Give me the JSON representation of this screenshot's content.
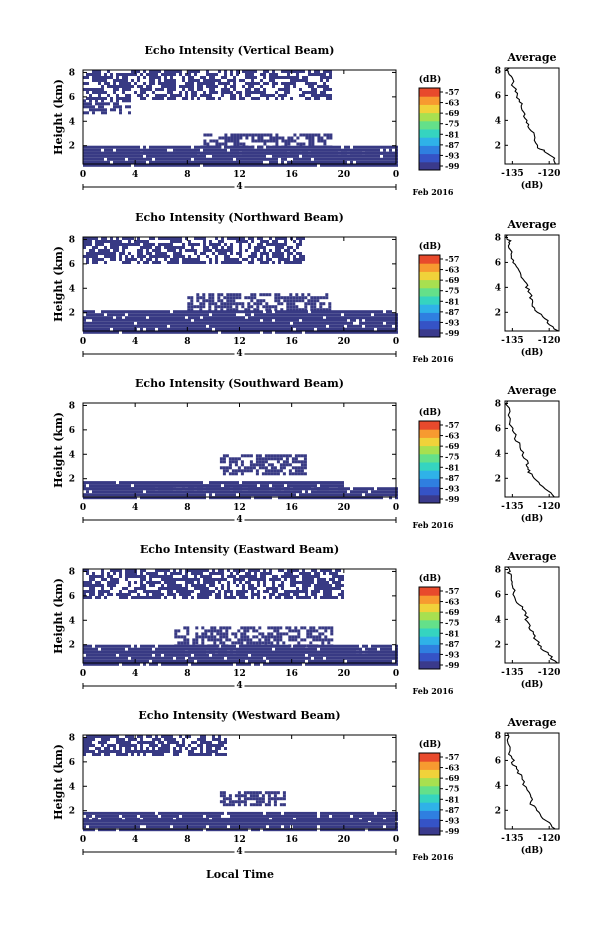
{
  "figure": {
    "xlabel": "Local Time",
    "date_label": "Feb 2016",
    "ylabel": "Height (km)",
    "colorbar_unit": "(dB)",
    "avg_title": "Average",
    "avg_xlabel": "(dB)"
  },
  "chart_data": [
    {
      "type": "heatmap",
      "title": "Echo Intensity (Vertical Beam)",
      "x_ticks": [
        "0",
        "4",
        "8",
        "12",
        "16",
        "20",
        "0"
      ],
      "day_marker": "4",
      "y_ticks": [
        "2",
        "4",
        "6",
        "8"
      ],
      "xlim": [
        0,
        24
      ],
      "ylim": [
        0.5,
        8.2
      ],
      "colorbar_ticks": [
        "-57",
        "-63",
        "-69",
        "-75",
        "-81",
        "-87",
        "-93",
        "-99"
      ],
      "bands": [
        {
          "x": [
            0,
            24
          ],
          "y": [
            0.5,
            1.5
          ]
        },
        {
          "x": [
            0,
            24
          ],
          "y": [
            1.5,
            2.0
          ]
        },
        {
          "x": [
            9,
            19
          ],
          "y": [
            2.0,
            3.0
          ]
        },
        {
          "x": [
            0,
            19
          ],
          "y": [
            5.8,
            8.2
          ]
        },
        {
          "x": [
            0,
            3.5
          ],
          "y": [
            4.8,
            5.8
          ]
        }
      ],
      "average": {
        "x_ticks": [
          "-135",
          "-120"
        ],
        "y_ticks": [
          "2",
          "4",
          "6",
          "8"
        ],
        "xlim": [
          -138,
          -116
        ],
        "ylim": [
          0.5,
          8.2
        ],
        "profile_x": [
          -117,
          -119,
          -124,
          -127,
          -129,
          -131,
          -133,
          -135,
          -136,
          -137
        ],
        "profile_y": [
          0.5,
          1.2,
          1.8,
          3.0,
          4.0,
          5.0,
          6.0,
          7.0,
          7.8,
          8.2
        ]
      }
    },
    {
      "type": "heatmap",
      "title": "Echo Intensity (Northward Beam)",
      "x_ticks": [
        "0",
        "4",
        "8",
        "12",
        "16",
        "20",
        "0"
      ],
      "day_marker": "4",
      "y_ticks": [
        "2",
        "4",
        "6",
        "8"
      ],
      "xlim": [
        0,
        24
      ],
      "ylim": [
        0.5,
        8.2
      ],
      "colorbar_ticks": [
        "-57",
        "-63",
        "-69",
        "-75",
        "-81",
        "-87",
        "-93",
        "-99"
      ],
      "bands": [
        {
          "x": [
            0,
            24
          ],
          "y": [
            0.5,
            1.5
          ]
        },
        {
          "x": [
            0,
            24
          ],
          "y": [
            1.5,
            2.2
          ]
        },
        {
          "x": [
            8,
            19
          ],
          "y": [
            2.2,
            3.6
          ]
        },
        {
          "x": [
            0,
            17
          ],
          "y": [
            6.0,
            8.2
          ]
        }
      ],
      "average": {
        "x_ticks": [
          "-135",
          "-120"
        ],
        "y_ticks": [
          "2",
          "4",
          "6",
          "8"
        ],
        "xlim": [
          -138,
          -116
        ],
        "ylim": [
          0.5,
          8.2
        ],
        "profile_x": [
          -117,
          -122,
          -127,
          -128,
          -130,
          -133,
          -135,
          -136,
          -137
        ],
        "profile_y": [
          0.5,
          1.5,
          2.5,
          3.5,
          4.5,
          5.5,
          6.5,
          7.5,
          8.2
        ]
      }
    },
    {
      "type": "heatmap",
      "title": "Echo Intensity (Southward Beam)",
      "x_ticks": [
        "0",
        "4",
        "8",
        "12",
        "16",
        "20",
        "0"
      ],
      "day_marker": "4",
      "y_ticks": [
        "2",
        "4",
        "6",
        "8"
      ],
      "xlim": [
        0,
        24
      ],
      "ylim": [
        0.5,
        8.2
      ],
      "colorbar_ticks": [
        "-57",
        "-63",
        "-69",
        "-75",
        "-81",
        "-87",
        "-93",
        "-99"
      ],
      "bands": [
        {
          "x": [
            0,
            24
          ],
          "y": [
            0.5,
            1.3
          ]
        },
        {
          "x": [
            0,
            20
          ],
          "y": [
            1.3,
            1.8
          ]
        },
        {
          "x": [
            10.5,
            17
          ],
          "y": [
            2.5,
            4.0
          ]
        }
      ],
      "average": {
        "x_ticks": [
          "-135",
          "-120"
        ],
        "y_ticks": [
          "2",
          "4",
          "6",
          "8"
        ],
        "xlim": [
          -138,
          -116
        ],
        "ylim": [
          0.5,
          8.2
        ],
        "profile_x": [
          -118,
          -124,
          -128,
          -129,
          -132,
          -134,
          -136,
          -137
        ],
        "profile_y": [
          0.5,
          1.5,
          2.5,
          3.2,
          4.5,
          5.5,
          6.5,
          8.2
        ]
      }
    },
    {
      "type": "heatmap",
      "title": "Echo Intensity (Eastward Beam)",
      "x_ticks": [
        "0",
        "4",
        "8",
        "12",
        "16",
        "20",
        "0"
      ],
      "day_marker": "4",
      "y_ticks": [
        "2",
        "4",
        "6",
        "8"
      ],
      "xlim": [
        0,
        24
      ],
      "ylim": [
        0.5,
        8.2
      ],
      "colorbar_ticks": [
        "-57",
        "-63",
        "-69",
        "-75",
        "-81",
        "-87",
        "-93",
        "-99"
      ],
      "bands": [
        {
          "x": [
            0,
            24
          ],
          "y": [
            0.5,
            1.5
          ]
        },
        {
          "x": [
            0,
            24
          ],
          "y": [
            1.5,
            2.0
          ]
        },
        {
          "x": [
            7,
            19
          ],
          "y": [
            2.0,
            3.5
          ]
        },
        {
          "x": [
            0,
            20
          ],
          "y": [
            5.8,
            8.2
          ]
        }
      ],
      "average": {
        "x_ticks": [
          "-135",
          "-120"
        ],
        "y_ticks": [
          "2",
          "4",
          "6",
          "8"
        ],
        "xlim": [
          -138,
          -116
        ],
        "ylim": [
          0.5,
          8.2
        ],
        "profile_x": [
          -117,
          -122,
          -126,
          -128,
          -130,
          -133,
          -135,
          -136,
          -137
        ],
        "profile_y": [
          0.5,
          1.5,
          2.5,
          3.5,
          4.5,
          5.5,
          6.5,
          7.5,
          8.2
        ]
      }
    },
    {
      "type": "heatmap",
      "title": "Echo Intensity (Westward Beam)",
      "x_ticks": [
        "0",
        "4",
        "8",
        "12",
        "16",
        "20",
        "0"
      ],
      "day_marker": "4",
      "y_ticks": [
        "2",
        "4",
        "6",
        "8"
      ],
      "xlim": [
        0,
        24
      ],
      "ylim": [
        0.5,
        8.2
      ],
      "colorbar_ticks": [
        "-57",
        "-63",
        "-69",
        "-75",
        "-81",
        "-87",
        "-93",
        "-99"
      ],
      "bands": [
        {
          "x": [
            0,
            24
          ],
          "y": [
            0.5,
            1.3
          ]
        },
        {
          "x": [
            0,
            24
          ],
          "y": [
            1.3,
            1.9
          ]
        },
        {
          "x": [
            10.5,
            15.5
          ],
          "y": [
            2.4,
            3.6
          ]
        },
        {
          "x": [
            0,
            11
          ],
          "y": [
            6.5,
            8.2
          ]
        }
      ],
      "average": {
        "x_ticks": [
          "-135",
          "-120"
        ],
        "y_ticks": [
          "2",
          "4",
          "6",
          "8"
        ],
        "xlim": [
          -138,
          -116
        ],
        "ylim": [
          0.5,
          8.2
        ],
        "profile_x": [
          -118,
          -123,
          -127,
          -128,
          -131,
          -134,
          -136,
          -137
        ],
        "profile_y": [
          0.5,
          1.5,
          2.5,
          3.2,
          4.5,
          5.5,
          6.5,
          8.2
        ]
      }
    }
  ],
  "colors": {
    "echo": "#383a84",
    "colorbar": [
      "#3a3a8c",
      "#3553c6",
      "#2f7fe0",
      "#2fb2e8",
      "#35d4c0",
      "#64e08a",
      "#a8e050",
      "#f0d23a",
      "#f79a30",
      "#e84a2c"
    ]
  }
}
